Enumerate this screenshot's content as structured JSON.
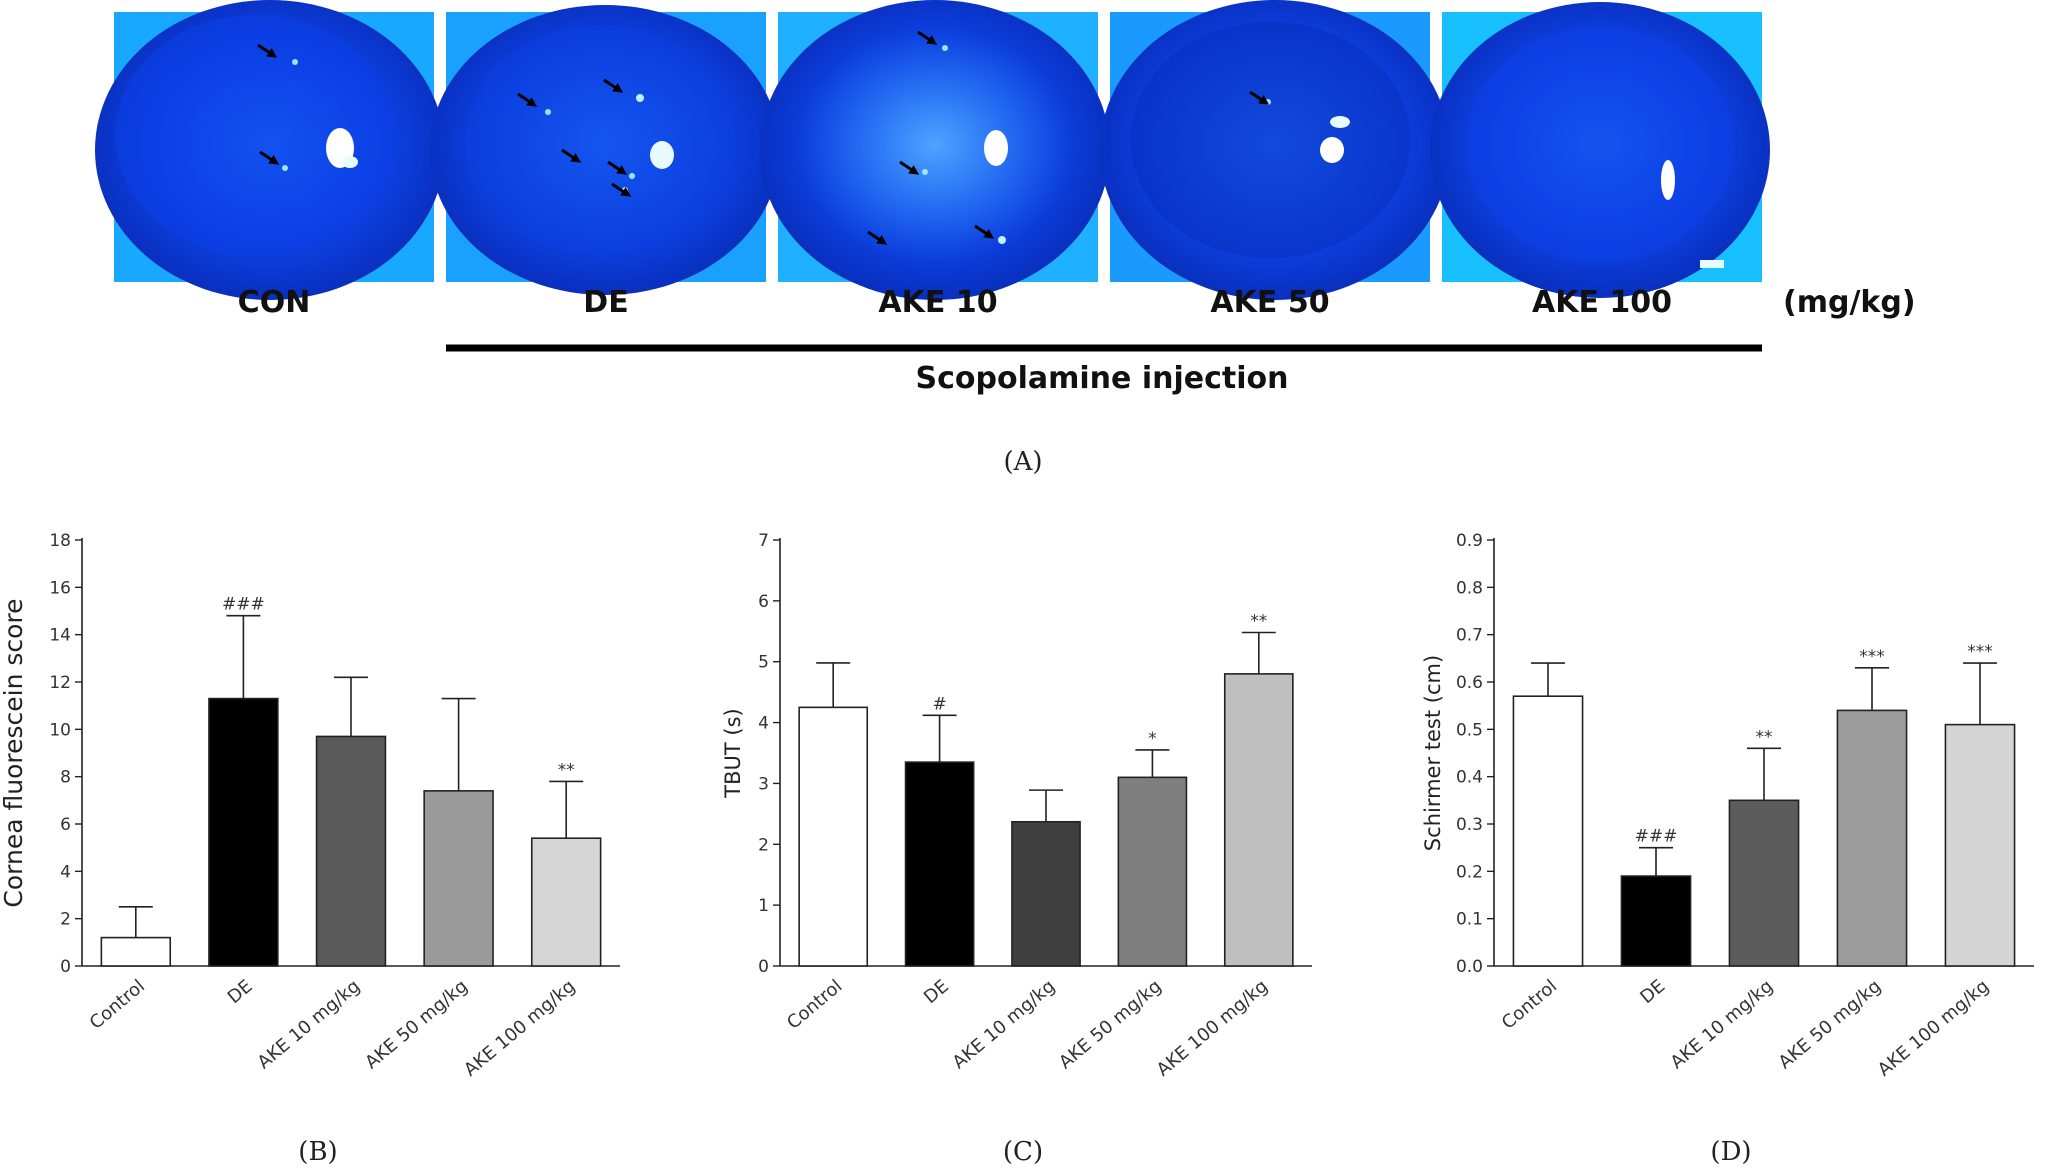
{
  "panel_a": {
    "panels": [
      {
        "label": "CON"
      },
      {
        "label": "DE"
      },
      {
        "label": "AKE 10"
      },
      {
        "label": "AKE 50"
      },
      {
        "label": "AKE 100"
      }
    ],
    "unit": "(mg/kg)",
    "group_label": "Scopolamine injection",
    "caption": "(A)"
  },
  "chart_data": [
    {
      "type": "bar",
      "caption": "(B)",
      "ylabel": "Cornea fluorescein score",
      "categories": [
        "Control",
        "DE",
        "AKE 10 mg/kg",
        "AKE 50 mg/kg",
        "AKE 100 mg/kg"
      ],
      "values": [
        1.2,
        11.3,
        9.7,
        7.4,
        5.4
      ],
      "errors": [
        1.3,
        3.5,
        2.5,
        3.9,
        2.4
      ],
      "annotations": [
        "",
        "###",
        "",
        "",
        "**"
      ],
      "ylim": [
        0,
        18
      ],
      "yticks": [
        "0",
        "2",
        "4",
        "6",
        "8",
        "10",
        "12",
        "14",
        "16",
        "18"
      ],
      "fills": [
        "#ffffff",
        "#000000",
        "#5a5a5a",
        "#9a9a9a",
        "#d6d6d6"
      ]
    },
    {
      "type": "bar",
      "caption": "(C)",
      "ylabel": "TBUT (s)",
      "categories": [
        "Control",
        "DE",
        "AKE 10 mg/kg",
        "AKE 50 mg/kg",
        "AKE 100 mg/kg"
      ],
      "values": [
        4.25,
        3.35,
        2.37,
        3.1,
        4.8
      ],
      "errors": [
        0.73,
        0.77,
        0.52,
        0.45,
        0.68
      ],
      "annotations": [
        "",
        "#",
        "",
        "*",
        "**"
      ],
      "ylim": [
        0,
        7
      ],
      "yticks": [
        "0",
        "1",
        "2",
        "3",
        "4",
        "5",
        "6",
        "7"
      ],
      "fills": [
        "#ffffff",
        "#000000",
        "#3f3f3f",
        "#7f7f7f",
        "#bfbfbf"
      ]
    },
    {
      "type": "bar",
      "caption": "(D)",
      "ylabel": "Schirmer test (cm)",
      "categories": [
        "Control",
        "DE",
        "AKE 10 mg/kg",
        "AKE 50 mg/kg",
        "AKE 100 mg/kg"
      ],
      "values": [
        0.57,
        0.19,
        0.35,
        0.54,
        0.51
      ],
      "errors": [
        0.07,
        0.06,
        0.11,
        0.09,
        0.13
      ],
      "annotations": [
        "",
        "###",
        "**",
        "***",
        "***"
      ],
      "ylim": [
        0,
        0.9
      ],
      "yticks": [
        "0.0",
        "0.1",
        "0.2",
        "0.3",
        "0.4",
        "0.5",
        "0.6",
        "0.7",
        "0.8",
        "0.9"
      ],
      "fills": [
        "#ffffff",
        "#000000",
        "#5c5c5c",
        "#9c9c9c",
        "#d4d4d4"
      ]
    }
  ]
}
